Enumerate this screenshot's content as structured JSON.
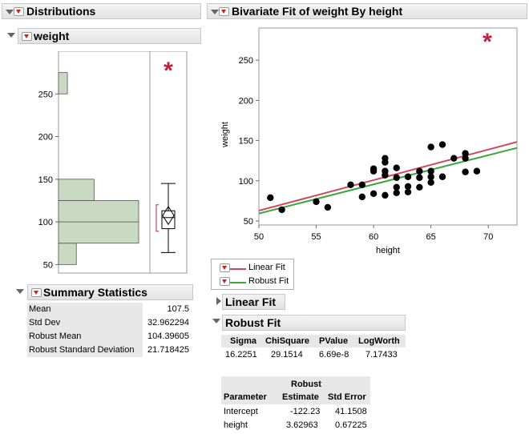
{
  "distributions": {
    "title": "Distributions",
    "variable": {
      "name": "weight",
      "y_ticks": [
        "250",
        "200",
        "150",
        "100",
        "50"
      ],
      "histogram": [
        {
          "lo": 50,
          "hi": 75,
          "count": 2
        },
        {
          "lo": 75,
          "hi": 100,
          "count": 9
        },
        {
          "lo": 100,
          "hi": 125,
          "count": 9
        },
        {
          "lo": 125,
          "hi": 150,
          "count": 4
        },
        {
          "lo": 150,
          "hi": 175,
          "count": 0
        },
        {
          "lo": 175,
          "hi": 200,
          "count": 0
        },
        {
          "lo": 200,
          "hi": 225,
          "count": 0
        },
        {
          "lo": 225,
          "hi": 250,
          "count": 0
        },
        {
          "lo": 250,
          "hi": 275,
          "count": 1
        }
      ],
      "y_range": [
        40,
        300
      ],
      "box": {
        "whisker_low": 64,
        "q1": 92,
        "median": 105,
        "q3": 113,
        "whisker_high": 145,
        "mean": 107.5
      },
      "robust_bracket": [
        89,
        120
      ],
      "asterisk": "*",
      "accent_color": "#c0203a"
    },
    "summary": {
      "title": "Summary Statistics",
      "rows": [
        {
          "label": "Mean",
          "value": "107.5"
        },
        {
          "label": "Std Dev",
          "value": "32.962294"
        },
        {
          "label": "Robust Mean",
          "value": "104.39605"
        },
        {
          "label": "Robust Standard Deviation",
          "value": "21.718425"
        }
      ]
    }
  },
  "bivariate": {
    "title": "Bivariate Fit of weight By height",
    "asterisk": "*",
    "chart_data": {
      "type": "scatter",
      "xlabel": "height",
      "ylabel": "weight",
      "xlim": [
        50,
        72.5
      ],
      "ylim": [
        45,
        290
      ],
      "x_ticks": [
        50,
        55,
        60,
        65,
        70
      ],
      "y_ticks": [
        50,
        100,
        150,
        200,
        250
      ],
      "points": [
        {
          "x": 51,
          "y": 79
        },
        {
          "x": 52,
          "y": 64
        },
        {
          "x": 55,
          "y": 74
        },
        {
          "x": 56,
          "y": 67
        },
        {
          "x": 58,
          "y": 95
        },
        {
          "x": 59,
          "y": 80
        },
        {
          "x": 59,
          "y": 95
        },
        {
          "x": 60,
          "y": 84
        },
        {
          "x": 60,
          "y": 112
        },
        {
          "x": 60,
          "y": 115
        },
        {
          "x": 61,
          "y": 82
        },
        {
          "x": 61,
          "y": 107
        },
        {
          "x": 61,
          "y": 112
        },
        {
          "x": 61,
          "y": 123
        },
        {
          "x": 61,
          "y": 128
        },
        {
          "x": 62,
          "y": 85
        },
        {
          "x": 62,
          "y": 92
        },
        {
          "x": 62,
          "y": 104
        },
        {
          "x": 62,
          "y": 116
        },
        {
          "x": 63,
          "y": 86
        },
        {
          "x": 63,
          "y": 93
        },
        {
          "x": 63,
          "y": 105
        },
        {
          "x": 64,
          "y": 92
        },
        {
          "x": 64,
          "y": 104
        },
        {
          "x": 64,
          "y": 112
        },
        {
          "x": 65,
          "y": 98
        },
        {
          "x": 65,
          "y": 105
        },
        {
          "x": 65,
          "y": 112
        },
        {
          "x": 65,
          "y": 142
        },
        {
          "x": 66,
          "y": 105
        },
        {
          "x": 66,
          "y": 145
        },
        {
          "x": 67,
          "y": 128
        },
        {
          "x": 68,
          "y": 111
        },
        {
          "x": 68,
          "y": 128
        },
        {
          "x": 68,
          "y": 134
        },
        {
          "x": 69,
          "y": 112
        }
      ],
      "series": [
        {
          "name": "Linear Fit",
          "color": "#d2455a",
          "intercept": -127.14,
          "slope": 3.8
        },
        {
          "name": "Robust Fit",
          "color": "#3aa63a",
          "intercept": -122.23,
          "slope": 3.62963
        }
      ]
    },
    "legend": [
      "Linear Fit",
      "Robust Fit"
    ],
    "linear_fit": {
      "title": "Linear Fit"
    },
    "robust_fit": {
      "title": "Robust Fit",
      "summary_headers": [
        "Sigma",
        "ChiSquare",
        "PValue",
        "LogWorth"
      ],
      "summary_values": [
        "16.2251",
        "29.1514",
        "6.69e-8",
        "7.17433"
      ],
      "param_header_top": "Robust",
      "param_headers": [
        "Parameter",
        "Estimate",
        "Std Error"
      ],
      "params": [
        {
          "name": "Intercept",
          "estimate": "-122.23",
          "std_error": "41.1508"
        },
        {
          "name": "height",
          "estimate": "3.62963",
          "std_error": "0.67225"
        }
      ]
    }
  }
}
